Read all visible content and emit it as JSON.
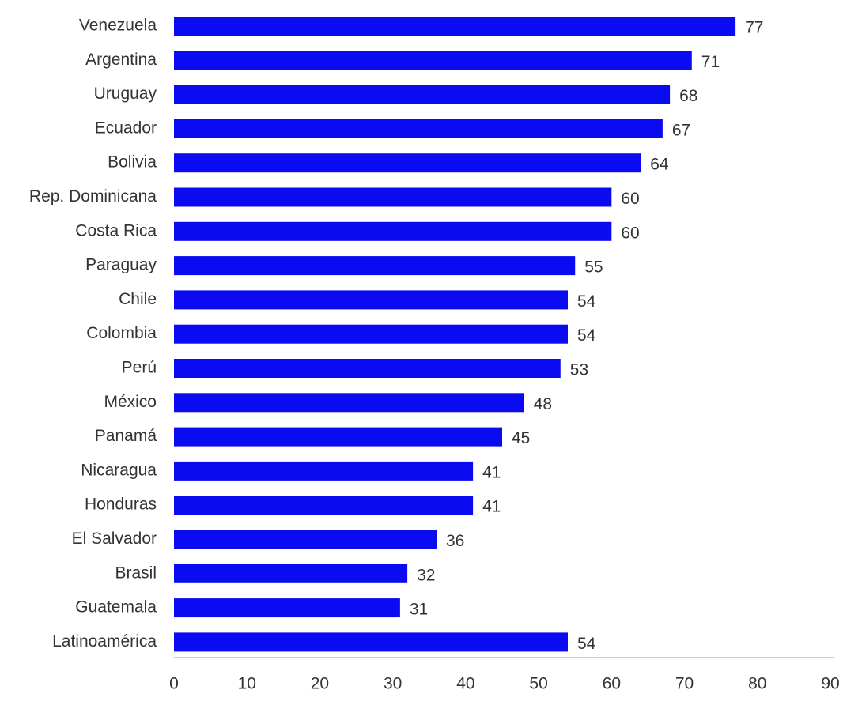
{
  "chart_data": {
    "type": "bar",
    "orientation": "horizontal",
    "categories": [
      "Venezuela",
      "Argentina",
      "Uruguay",
      "Ecuador",
      "Bolivia",
      "Rep. Dominicana",
      "Costa Rica",
      "Paraguay",
      "Chile",
      "Colombia",
      "Perú",
      "México",
      "Panamá",
      "Nicaragua",
      "Honduras",
      "El Salvador",
      "Brasil",
      "Guatemala",
      "Latinoamérica"
    ],
    "values": [
      77,
      71,
      68,
      67,
      64,
      60,
      60,
      55,
      54,
      54,
      53,
      48,
      45,
      41,
      41,
      36,
      32,
      31,
      54
    ],
    "color": "#0b0bf2",
    "xlim": [
      0,
      90
    ],
    "xticks": [
      0,
      10,
      20,
      30,
      40,
      50,
      60,
      70,
      80,
      90
    ],
    "grid": false
  }
}
